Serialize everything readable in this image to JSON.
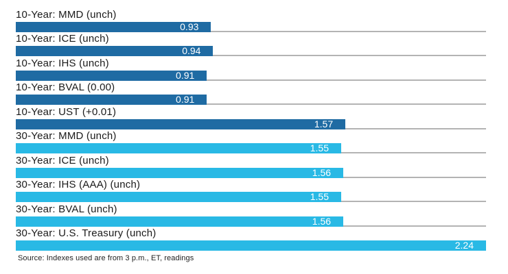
{
  "chart_data": {
    "type": "bar",
    "orientation": "horizontal",
    "title": "",
    "xlabel": "",
    "ylabel": "",
    "xlim": [
      0,
      2.24
    ],
    "grid": false,
    "legend": false,
    "categories": [
      "10-Year: MMD (unch)",
      "10-Year: ICE (unch)",
      "10-Year: IHS (unch)",
      "10-Year: BVAL (0.00)",
      "10-Year: UST (+0.01)",
      "30-Year: MMD (unch)",
      "30-Year: ICE (unch)",
      "30-Year: IHS (AAA) (unch)",
      "30-Year: BVAL (unch)",
      "30-Year: U.S. Treasury (unch)"
    ],
    "values": [
      0.93,
      0.94,
      0.91,
      0.91,
      1.57,
      1.55,
      1.56,
      1.55,
      1.56,
      2.24
    ],
    "value_labels": [
      "0.93",
      "0.94",
      "0.91",
      "0.91",
      "1.57",
      "1.55",
      "1.56",
      "1.55",
      "1.56",
      "2.24"
    ],
    "groups": [
      "10-year",
      "10-year",
      "10-year",
      "10-year",
      "10-year",
      "30-year",
      "30-year",
      "30-year",
      "30-year",
      "30-year"
    ],
    "group_colors": {
      "10-year": "#1f6ba3",
      "30-year": "#29b9e5"
    },
    "baseline_color": "#b3b3b3",
    "value_text_color": "#ffffff",
    "source_note": "Source: Indexes used are from 3 p.m., ET, readings"
  }
}
